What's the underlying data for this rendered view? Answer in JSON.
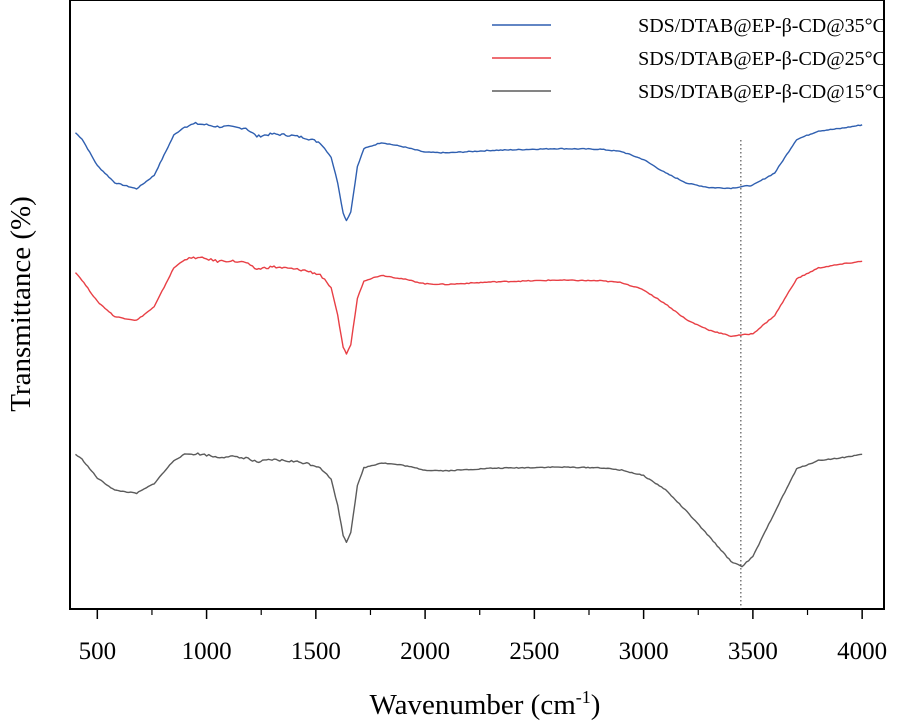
{
  "chart_data": {
    "type": "line",
    "title": "",
    "xlabel": "Wavenumber (cm",
    "xlabel_sup": "-1",
    "xlabel_close": ")",
    "ylabel": "Transmittance (%)",
    "xlim": [
      375,
      4100
    ],
    "ylim": [
      0,
      1
    ],
    "x_ticks": [
      500,
      1000,
      1500,
      2000,
      2500,
      3000,
      3500,
      4000
    ],
    "x_tick_labels": [
      "500",
      "1000",
      "1500",
      "2000",
      "2500",
      "3000",
      "3500",
      "4000"
    ],
    "y_ticks_shown": false,
    "reference_line": {
      "x": 3445,
      "style": "dotted"
    },
    "legend": {
      "placement": "top-right"
    },
    "series": [
      {
        "name": "SDS/DTAB@EP-β-CD@35°C",
        "color": "#2f5fb0",
        "points": [
          [
            400,
            0.782
          ],
          [
            430,
            0.772
          ],
          [
            500,
            0.728
          ],
          [
            580,
            0.7
          ],
          [
            680,
            0.69
          ],
          [
            760,
            0.712
          ],
          [
            850,
            0.778
          ],
          [
            900,
            0.792
          ],
          [
            950,
            0.797
          ],
          [
            1000,
            0.795
          ],
          [
            1050,
            0.792
          ],
          [
            1100,
            0.792
          ],
          [
            1150,
            0.79
          ],
          [
            1180,
            0.79
          ],
          [
            1200,
            0.784
          ],
          [
            1230,
            0.776
          ],
          [
            1300,
            0.78
          ],
          [
            1380,
            0.778
          ],
          [
            1450,
            0.774
          ],
          [
            1520,
            0.766
          ],
          [
            1570,
            0.742
          ],
          [
            1600,
            0.7
          ],
          [
            1625,
            0.65
          ],
          [
            1640,
            0.638
          ],
          [
            1660,
            0.652
          ],
          [
            1690,
            0.726
          ],
          [
            1720,
            0.756
          ],
          [
            1800,
            0.766
          ],
          [
            1900,
            0.759
          ],
          [
            2000,
            0.75
          ],
          [
            2100,
            0.749
          ],
          [
            2300,
            0.753
          ],
          [
            2600,
            0.756
          ],
          [
            2800,
            0.755
          ],
          [
            2900,
            0.751
          ],
          [
            3000,
            0.738
          ],
          [
            3100,
            0.716
          ],
          [
            3200,
            0.699
          ],
          [
            3300,
            0.692
          ],
          [
            3400,
            0.691
          ],
          [
            3500,
            0.696
          ],
          [
            3600,
            0.716
          ],
          [
            3700,
            0.771
          ],
          [
            3800,
            0.785
          ],
          [
            3900,
            0.789
          ],
          [
            4000,
            0.795
          ]
        ]
      },
      {
        "name": "SDS/DTAB@EP-β-CD@25°C",
        "color": "#e83f45",
        "points": [
          [
            400,
            0.553
          ],
          [
            430,
            0.54
          ],
          [
            500,
            0.505
          ],
          [
            580,
            0.48
          ],
          [
            680,
            0.474
          ],
          [
            760,
            0.496
          ],
          [
            850,
            0.56
          ],
          [
            900,
            0.574
          ],
          [
            950,
            0.577
          ],
          [
            1000,
            0.575
          ],
          [
            1050,
            0.571
          ],
          [
            1100,
            0.572
          ],
          [
            1150,
            0.57
          ],
          [
            1180,
            0.569
          ],
          [
            1200,
            0.563
          ],
          [
            1230,
            0.558
          ],
          [
            1300,
            0.562
          ],
          [
            1380,
            0.559
          ],
          [
            1450,
            0.556
          ],
          [
            1520,
            0.549
          ],
          [
            1570,
            0.527
          ],
          [
            1600,
            0.482
          ],
          [
            1625,
            0.43
          ],
          [
            1640,
            0.419
          ],
          [
            1660,
            0.434
          ],
          [
            1690,
            0.51
          ],
          [
            1720,
            0.539
          ],
          [
            1800,
            0.548
          ],
          [
            1900,
            0.542
          ],
          [
            2000,
            0.534
          ],
          [
            2100,
            0.533
          ],
          [
            2300,
            0.537
          ],
          [
            2600,
            0.54
          ],
          [
            2800,
            0.539
          ],
          [
            2900,
            0.536
          ],
          [
            3000,
            0.524
          ],
          [
            3100,
            0.501
          ],
          [
            3200,
            0.474
          ],
          [
            3300,
            0.458
          ],
          [
            3400,
            0.448
          ],
          [
            3500,
            0.452
          ],
          [
            3600,
            0.482
          ],
          [
            3700,
            0.542
          ],
          [
            3800,
            0.56
          ],
          [
            3900,
            0.566
          ],
          [
            4000,
            0.571
          ]
        ]
      },
      {
        "name": "SDS/DTAB@EP-β-CD@15°C",
        "color": "#5b5b5b",
        "points": [
          [
            400,
            0.254
          ],
          [
            430,
            0.246
          ],
          [
            500,
            0.215
          ],
          [
            580,
            0.195
          ],
          [
            680,
            0.19
          ],
          [
            760,
            0.206
          ],
          [
            850,
            0.244
          ],
          [
            900,
            0.254
          ],
          [
            950,
            0.255
          ],
          [
            1000,
            0.253
          ],
          [
            1050,
            0.249
          ],
          [
            1100,
            0.251
          ],
          [
            1150,
            0.248
          ],
          [
            1180,
            0.249
          ],
          [
            1200,
            0.245
          ],
          [
            1230,
            0.241
          ],
          [
            1300,
            0.245
          ],
          [
            1380,
            0.243
          ],
          [
            1450,
            0.24
          ],
          [
            1520,
            0.233
          ],
          [
            1570,
            0.213
          ],
          [
            1600,
            0.17
          ],
          [
            1625,
            0.121
          ],
          [
            1640,
            0.11
          ],
          [
            1660,
            0.126
          ],
          [
            1690,
            0.202
          ],
          [
            1720,
            0.232
          ],
          [
            1800,
            0.24
          ],
          [
            1900,
            0.236
          ],
          [
            2000,
            0.228
          ],
          [
            2100,
            0.227
          ],
          [
            2300,
            0.231
          ],
          [
            2600,
            0.233
          ],
          [
            2800,
            0.232
          ],
          [
            2900,
            0.228
          ],
          [
            3000,
            0.219
          ],
          [
            3100,
            0.196
          ],
          [
            3200,
            0.159
          ],
          [
            3300,
            0.119
          ],
          [
            3400,
            0.078
          ],
          [
            3450,
            0.07
          ],
          [
            3500,
            0.086
          ],
          [
            3600,
            0.159
          ],
          [
            3700,
            0.23
          ],
          [
            3800,
            0.244
          ],
          [
            3900,
            0.248
          ],
          [
            4000,
            0.254
          ]
        ]
      }
    ],
    "legend_order": [
      0,
      1,
      2
    ]
  }
}
